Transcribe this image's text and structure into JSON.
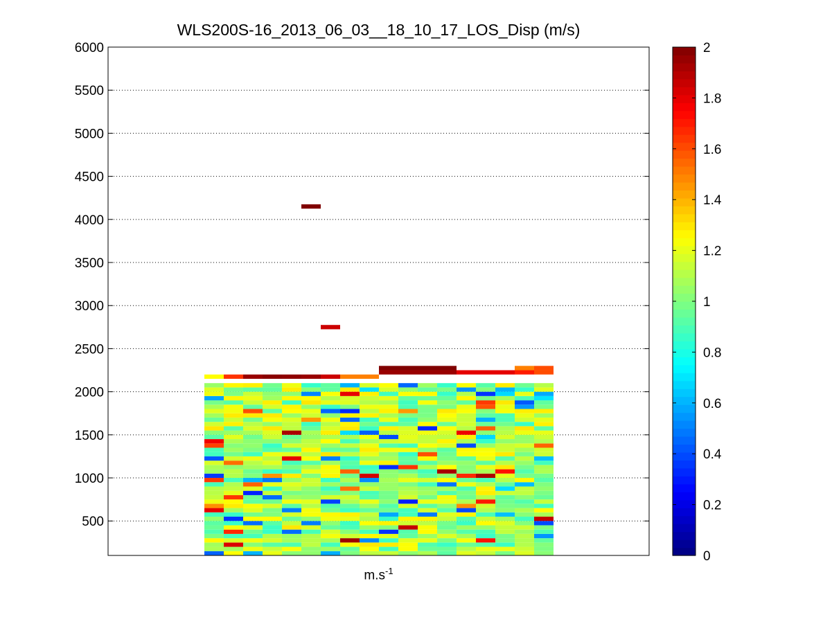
{
  "chart_data": {
    "type": "heatmap",
    "title": "WLS200S-16_2013_06_03__18_10_17_LOS_Disp (m/s)",
    "xlabel_base": "m.s",
    "xlabel_exp": "-1",
    "ylim": [
      100,
      6000
    ],
    "y_ticks": [
      500,
      1000,
      1500,
      2000,
      2500,
      3000,
      3500,
      4000,
      4500,
      5000,
      5500,
      6000
    ],
    "y_grid": true,
    "colorbar": {
      "colormap": "jet",
      "clim": [
        0,
        2
      ],
      "ticks": [
        0,
        0.2,
        0.4,
        0.6,
        0.8,
        1,
        1.2,
        1.4,
        1.6,
        1.8,
        2
      ],
      "position": "right"
    },
    "columns": 18,
    "row_height_m": 50,
    "bulk_rows_y": [
      125,
      2100
    ],
    "top_rows": [
      {
        "y": 2175,
        "values": [
          1.25,
          1.65,
          1.95,
          1.98,
          1.97,
          1.95,
          1.85,
          1.5,
          1.5,
          null,
          null,
          null,
          null,
          null,
          null,
          null,
          null,
          null
        ]
      },
      {
        "y": 2225,
        "values": [
          null,
          null,
          null,
          null,
          null,
          null,
          null,
          null,
          null,
          1.95,
          1.95,
          1.95,
          1.95,
          1.8,
          1.8,
          1.8,
          1.7,
          1.6
        ]
      },
      {
        "y": 2275,
        "values": [
          null,
          null,
          null,
          null,
          null,
          null,
          null,
          null,
          null,
          2.0,
          2.0,
          2.0,
          2.0,
          null,
          null,
          null,
          1.5,
          1.6
        ]
      }
    ],
    "isolated_cells": [
      {
        "column": 5,
        "y": 4150,
        "value": 2.0
      },
      {
        "column": 6,
        "y": 2750,
        "value": 1.85
      }
    ]
  }
}
